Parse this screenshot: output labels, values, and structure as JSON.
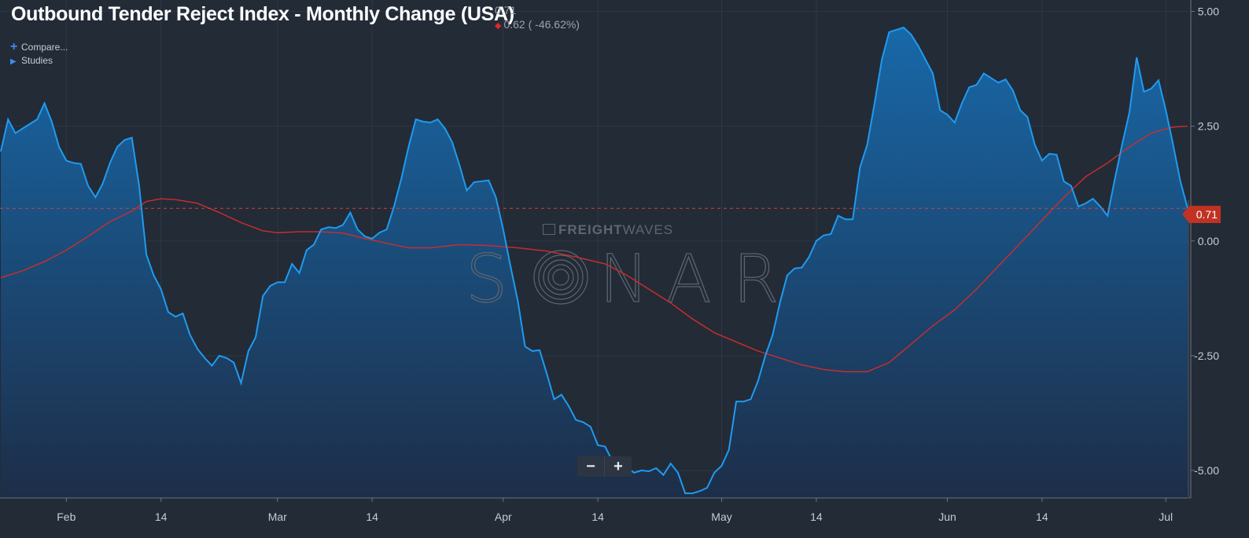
{
  "header": {
    "title": "Outbound Tender Reject Index - Monthly Change (USA)",
    "last_value": "0.71",
    "change": "0.62 ( -46.62%)"
  },
  "menu": {
    "compare": "Compare...",
    "studies": "Studies"
  },
  "watermark": {
    "brand_bold": "FREIGHT",
    "brand_light": "WAVES",
    "product": "SONAR"
  },
  "zoom": {
    "minus": "−",
    "plus": "+"
  },
  "colors": {
    "background": "#232b37",
    "line": "#1f9bf0",
    "moving_average": "#d02c2c",
    "last_price": "#c03222",
    "area_top": "#1868a8",
    "area_bottom": "#1d2e48"
  },
  "chart_data": {
    "type": "area",
    "title": "Outbound Tender Reject Index - Monthly Change (USA)",
    "xlabel": "",
    "ylabel": "",
    "ylim": [
      -5.6,
      5.25
    ],
    "y_ticks": [
      5.0,
      2.5,
      0.0,
      -2.5,
      -5.0
    ],
    "y_tick_labels": [
      "5.00",
      "2.50",
      "0.00",
      "-2.50",
      "-5.00"
    ],
    "x_ticks": [
      {
        "date": "2024-02-01",
        "label": "Feb"
      },
      {
        "date": "2024-02-14",
        "label": "14"
      },
      {
        "date": "2024-03-01",
        "label": "Mar"
      },
      {
        "date": "2024-03-14",
        "label": "14"
      },
      {
        "date": "2024-04-01",
        "label": "Apr"
      },
      {
        "date": "2024-04-14",
        "label": "14"
      },
      {
        "date": "2024-05-01",
        "label": "May"
      },
      {
        "date": "2024-05-14",
        "label": "14"
      },
      {
        "date": "2024-06-01",
        "label": "Jun"
      },
      {
        "date": "2024-06-14",
        "label": "14"
      },
      {
        "date": "2024-07-01",
        "label": "Jul"
      }
    ],
    "x_range": [
      "2024-01-23",
      "2024-07-04"
    ],
    "last_value_line": 0.71,
    "last_value_label": "0.71",
    "grid": true,
    "series": [
      {
        "name": "",
        "style": "area",
        "points": [
          [
            "2024-01-23",
            1.95
          ],
          [
            "2024-01-24",
            2.65
          ],
          [
            "2024-01-25",
            2.35
          ],
          [
            "2024-01-26",
            2.45
          ],
          [
            "2024-01-27",
            2.55
          ],
          [
            "2024-01-28",
            2.65
          ],
          [
            "2024-01-29",
            3.0
          ],
          [
            "2024-01-30",
            2.6
          ],
          [
            "2024-01-31",
            2.05
          ],
          [
            "2024-02-01",
            1.75
          ],
          [
            "2024-02-02",
            1.7
          ],
          [
            "2024-02-03",
            1.68
          ],
          [
            "2024-02-04",
            1.2
          ],
          [
            "2024-02-05",
            0.95
          ],
          [
            "2024-02-06",
            1.25
          ],
          [
            "2024-02-07",
            1.7
          ],
          [
            "2024-02-08",
            2.05
          ],
          [
            "2024-02-09",
            2.2
          ],
          [
            "2024-02-10",
            2.25
          ],
          [
            "2024-02-11",
            1.2
          ],
          [
            "2024-02-12",
            -0.3
          ],
          [
            "2024-02-13",
            -0.75
          ],
          [
            "2024-02-14",
            -1.05
          ],
          [
            "2024-02-15",
            -1.55
          ],
          [
            "2024-02-16",
            -1.65
          ],
          [
            "2024-02-17",
            -1.58
          ],
          [
            "2024-02-18",
            -2.05
          ],
          [
            "2024-02-19",
            -2.35
          ],
          [
            "2024-02-20",
            -2.55
          ],
          [
            "2024-02-21",
            -2.72
          ],
          [
            "2024-02-22",
            -2.5
          ],
          [
            "2024-02-23",
            -2.55
          ],
          [
            "2024-02-24",
            -2.65
          ],
          [
            "2024-02-25",
            -3.1
          ],
          [
            "2024-02-26",
            -2.4
          ],
          [
            "2024-02-27",
            -2.1
          ],
          [
            "2024-02-28",
            -1.2
          ],
          [
            "2024-02-29",
            -0.98
          ],
          [
            "2024-03-01",
            -0.9
          ],
          [
            "2024-03-02",
            -0.9
          ],
          [
            "2024-03-03",
            -0.5
          ],
          [
            "2024-03-04",
            -0.7
          ],
          [
            "2024-03-05",
            -0.2
          ],
          [
            "2024-03-06",
            -0.08
          ],
          [
            "2024-03-07",
            0.25
          ],
          [
            "2024-03-08",
            0.3
          ],
          [
            "2024-03-09",
            0.28
          ],
          [
            "2024-03-10",
            0.35
          ],
          [
            "2024-03-11",
            0.62
          ],
          [
            "2024-03-12",
            0.25
          ],
          [
            "2024-03-13",
            0.1
          ],
          [
            "2024-03-14",
            0.05
          ],
          [
            "2024-03-15",
            0.18
          ],
          [
            "2024-03-16",
            0.25
          ],
          [
            "2024-03-17",
            0.75
          ],
          [
            "2024-03-18",
            1.35
          ],
          [
            "2024-03-19",
            2.05
          ],
          [
            "2024-03-20",
            2.65
          ],
          [
            "2024-03-21",
            2.6
          ],
          [
            "2024-03-22",
            2.58
          ],
          [
            "2024-03-23",
            2.65
          ],
          [
            "2024-03-24",
            2.45
          ],
          [
            "2024-03-25",
            2.15
          ],
          [
            "2024-03-26",
            1.65
          ],
          [
            "2024-03-27",
            1.1
          ],
          [
            "2024-03-28",
            1.28
          ],
          [
            "2024-03-29",
            1.3
          ],
          [
            "2024-03-30",
            1.32
          ],
          [
            "2024-03-31",
            0.95
          ],
          [
            "2024-04-01",
            0.25
          ],
          [
            "2024-04-02",
            -0.55
          ],
          [
            "2024-04-03",
            -1.3
          ],
          [
            "2024-04-04",
            -2.3
          ],
          [
            "2024-04-05",
            -2.4
          ],
          [
            "2024-04-06",
            -2.38
          ],
          [
            "2024-04-07",
            -2.9
          ],
          [
            "2024-04-08",
            -3.45
          ],
          [
            "2024-04-09",
            -3.35
          ],
          [
            "2024-04-10",
            -3.6
          ],
          [
            "2024-04-11",
            -3.9
          ],
          [
            "2024-04-12",
            -3.95
          ],
          [
            "2024-04-13",
            -4.05
          ],
          [
            "2024-04-14",
            -4.45
          ],
          [
            "2024-04-15",
            -4.48
          ],
          [
            "2024-04-16",
            -4.8
          ],
          [
            "2024-04-17",
            -4.85
          ],
          [
            "2024-04-18",
            -4.95
          ],
          [
            "2024-04-19",
            -5.05
          ],
          [
            "2024-04-20",
            -5.0
          ],
          [
            "2024-04-21",
            -5.02
          ],
          [
            "2024-04-22",
            -4.95
          ],
          [
            "2024-04-23",
            -5.1
          ],
          [
            "2024-04-24",
            -4.85
          ],
          [
            "2024-04-25",
            -5.05
          ],
          [
            "2024-04-26",
            -5.5
          ],
          [
            "2024-04-27",
            -5.5
          ],
          [
            "2024-04-28",
            -5.45
          ],
          [
            "2024-04-29",
            -5.38
          ],
          [
            "2024-04-30",
            -5.05
          ],
          [
            "2024-05-01",
            -4.9
          ],
          [
            "2024-05-02",
            -4.55
          ],
          [
            "2024-05-03",
            -3.5
          ],
          [
            "2024-05-04",
            -3.5
          ],
          [
            "2024-05-05",
            -3.45
          ],
          [
            "2024-05-06",
            -3.05
          ],
          [
            "2024-05-07",
            -2.5
          ],
          [
            "2024-05-08",
            -2.05
          ],
          [
            "2024-05-09",
            -1.35
          ],
          [
            "2024-05-10",
            -0.75
          ],
          [
            "2024-05-11",
            -0.6
          ],
          [
            "2024-05-12",
            -0.58
          ],
          [
            "2024-05-13",
            -0.35
          ],
          [
            "2024-05-14",
            0.0
          ],
          [
            "2024-05-15",
            0.12
          ],
          [
            "2024-05-16",
            0.15
          ],
          [
            "2024-05-17",
            0.55
          ],
          [
            "2024-05-18",
            0.47
          ],
          [
            "2024-05-19",
            0.47
          ],
          [
            "2024-05-20",
            1.6
          ],
          [
            "2024-05-21",
            2.1
          ],
          [
            "2024-05-22",
            3.0
          ],
          [
            "2024-05-23",
            3.95
          ],
          [
            "2024-05-24",
            4.55
          ],
          [
            "2024-05-25",
            4.6
          ],
          [
            "2024-05-26",
            4.65
          ],
          [
            "2024-05-27",
            4.5
          ],
          [
            "2024-05-28",
            4.25
          ],
          [
            "2024-05-29",
            3.95
          ],
          [
            "2024-05-30",
            3.65
          ],
          [
            "2024-05-31",
            2.85
          ],
          [
            "2024-06-01",
            2.75
          ],
          [
            "2024-06-02",
            2.58
          ],
          [
            "2024-06-03",
            3.0
          ],
          [
            "2024-06-04",
            3.35
          ],
          [
            "2024-06-05",
            3.4
          ],
          [
            "2024-06-06",
            3.65
          ],
          [
            "2024-06-07",
            3.55
          ],
          [
            "2024-06-08",
            3.45
          ],
          [
            "2024-06-09",
            3.52
          ],
          [
            "2024-06-10",
            3.28
          ],
          [
            "2024-06-11",
            2.85
          ],
          [
            "2024-06-12",
            2.7
          ],
          [
            "2024-06-13",
            2.1
          ],
          [
            "2024-06-14",
            1.75
          ],
          [
            "2024-06-15",
            1.9
          ],
          [
            "2024-06-16",
            1.88
          ],
          [
            "2024-06-17",
            1.3
          ],
          [
            "2024-06-18",
            1.2
          ],
          [
            "2024-06-19",
            0.75
          ],
          [
            "2024-06-20",
            0.82
          ],
          [
            "2024-06-21",
            0.92
          ],
          [
            "2024-06-22",
            0.75
          ],
          [
            "2024-06-23",
            0.55
          ],
          [
            "2024-06-24",
            1.35
          ],
          [
            "2024-06-25",
            2.1
          ],
          [
            "2024-06-26",
            2.8
          ],
          [
            "2024-06-27",
            4.0
          ],
          [
            "2024-06-28",
            3.25
          ],
          [
            "2024-06-29",
            3.32
          ],
          [
            "2024-06-30",
            3.5
          ],
          [
            "2024-07-01",
            2.85
          ],
          [
            "2024-07-02",
            2.1
          ],
          [
            "2024-07-03",
            1.3
          ],
          [
            "2024-07-04",
            0.71
          ]
        ]
      },
      {
        "name": "",
        "style": "line",
        "points": [
          [
            "2024-01-23",
            -0.8
          ],
          [
            "2024-01-26",
            -0.65
          ],
          [
            "2024-01-29",
            -0.45
          ],
          [
            "2024-02-01",
            -0.2
          ],
          [
            "2024-02-04",
            0.1
          ],
          [
            "2024-02-07",
            0.42
          ],
          [
            "2024-02-10",
            0.65
          ],
          [
            "2024-02-12",
            0.86
          ],
          [
            "2024-02-14",
            0.92
          ],
          [
            "2024-02-16",
            0.9
          ],
          [
            "2024-02-19",
            0.82
          ],
          [
            "2024-02-22",
            0.62
          ],
          [
            "2024-02-25",
            0.4
          ],
          [
            "2024-02-28",
            0.22
          ],
          [
            "2024-03-01",
            0.18
          ],
          [
            "2024-03-04",
            0.2
          ],
          [
            "2024-03-07",
            0.2
          ],
          [
            "2024-03-10",
            0.17
          ],
          [
            "2024-03-13",
            0.05
          ],
          [
            "2024-03-16",
            -0.05
          ],
          [
            "2024-03-19",
            -0.15
          ],
          [
            "2024-03-22",
            -0.15
          ],
          [
            "2024-03-26",
            -0.08
          ],
          [
            "2024-03-30",
            -0.1
          ],
          [
            "2024-04-03",
            -0.15
          ],
          [
            "2024-04-07",
            -0.22
          ],
          [
            "2024-04-11",
            -0.35
          ],
          [
            "2024-04-15",
            -0.5
          ],
          [
            "2024-04-18",
            -0.75
          ],
          [
            "2024-04-21",
            -1.05
          ],
          [
            "2024-04-24",
            -1.35
          ],
          [
            "2024-04-27",
            -1.7
          ],
          [
            "2024-04-30",
            -2.0
          ],
          [
            "2024-05-03",
            -2.2
          ],
          [
            "2024-05-06",
            -2.4
          ],
          [
            "2024-05-09",
            -2.55
          ],
          [
            "2024-05-12",
            -2.7
          ],
          [
            "2024-05-15",
            -2.8
          ],
          [
            "2024-05-18",
            -2.85
          ],
          [
            "2024-05-21",
            -2.85
          ],
          [
            "2024-05-24",
            -2.65
          ],
          [
            "2024-05-27",
            -2.25
          ],
          [
            "2024-05-30",
            -1.85
          ],
          [
            "2024-06-02",
            -1.5
          ],
          [
            "2024-06-05",
            -1.05
          ],
          [
            "2024-06-08",
            -0.55
          ],
          [
            "2024-06-11",
            -0.05
          ],
          [
            "2024-06-14",
            0.45
          ],
          [
            "2024-06-17",
            0.95
          ],
          [
            "2024-06-20",
            1.4
          ],
          [
            "2024-06-23",
            1.7
          ],
          [
            "2024-06-26",
            2.05
          ],
          [
            "2024-06-29",
            2.35
          ],
          [
            "2024-07-02",
            2.48
          ],
          [
            "2024-07-04",
            2.5
          ]
        ]
      }
    ]
  }
}
